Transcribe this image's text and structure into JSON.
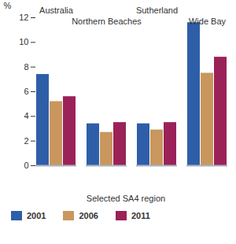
{
  "chart_data": {
    "type": "bar",
    "categories": [
      "Australia",
      "Northern Beaches",
      "Sutherland",
      "Wide Bay"
    ],
    "series": [
      {
        "name": "2001",
        "color": "#2e5ea8",
        "values": [
          7.4,
          3.4,
          3.4,
          11.6
        ]
      },
      {
        "name": "2006",
        "color": "#c9975d",
        "values": [
          5.2,
          2.7,
          2.9,
          7.5
        ]
      },
      {
        "name": "2011",
        "color": "#9b2258",
        "values": [
          5.6,
          3.5,
          3.5,
          8.8
        ]
      }
    ],
    "xlabel": "Selected SA4 region",
    "ylabel": "%",
    "ylim": [
      0,
      12
    ],
    "yticks": [
      0,
      2,
      4,
      6,
      8,
      10,
      12
    ],
    "grid": false,
    "legend": "bottom"
  }
}
